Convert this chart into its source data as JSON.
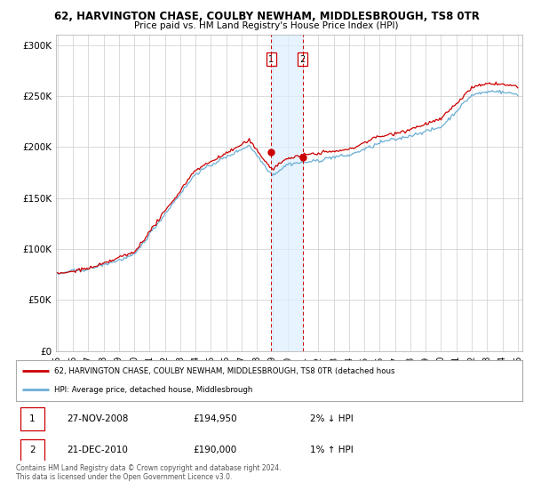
{
  "title1": "62, HARVINGTON CHASE, COULBY NEWHAM, MIDDLESBROUGH, TS8 0TR",
  "title2": "Price paid vs. HM Land Registry's House Price Index (HPI)",
  "ylabel_ticks": [
    "£0",
    "£50K",
    "£100K",
    "£150K",
    "£200K",
    "£250K",
    "£300K"
  ],
  "ytick_vals": [
    0,
    50000,
    100000,
    150000,
    200000,
    250000,
    300000
  ],
  "ylim": [
    0,
    310000
  ],
  "hpi_color": "#6baed6",
  "price_color": "#cc0000",
  "marker1_date": 2008.92,
  "marker1_price": 194950,
  "marker2_date": 2010.98,
  "marker2_price": 190000,
  "shade_color": "#ddeeff",
  "dashed_color": "#cc0000",
  "legend_label1": "62, HARVINGTON CHASE, COULBY NEWHAM, MIDDLESBROUGH, TS8 0TR (detached hous",
  "legend_label2": "HPI: Average price, detached house, Middlesbrough",
  "table_row1": [
    "1",
    "27-NOV-2008",
    "£194,950",
    "2% ↓ HPI"
  ],
  "table_row2": [
    "2",
    "21-DEC-2010",
    "£190,000",
    "1% ↑ HPI"
  ],
  "footnote": "Contains HM Land Registry data © Crown copyright and database right 2024.\nThis data is licensed under the Open Government Licence v3.0.",
  "background_color": "#ffffff",
  "grid_color": "#cccccc"
}
